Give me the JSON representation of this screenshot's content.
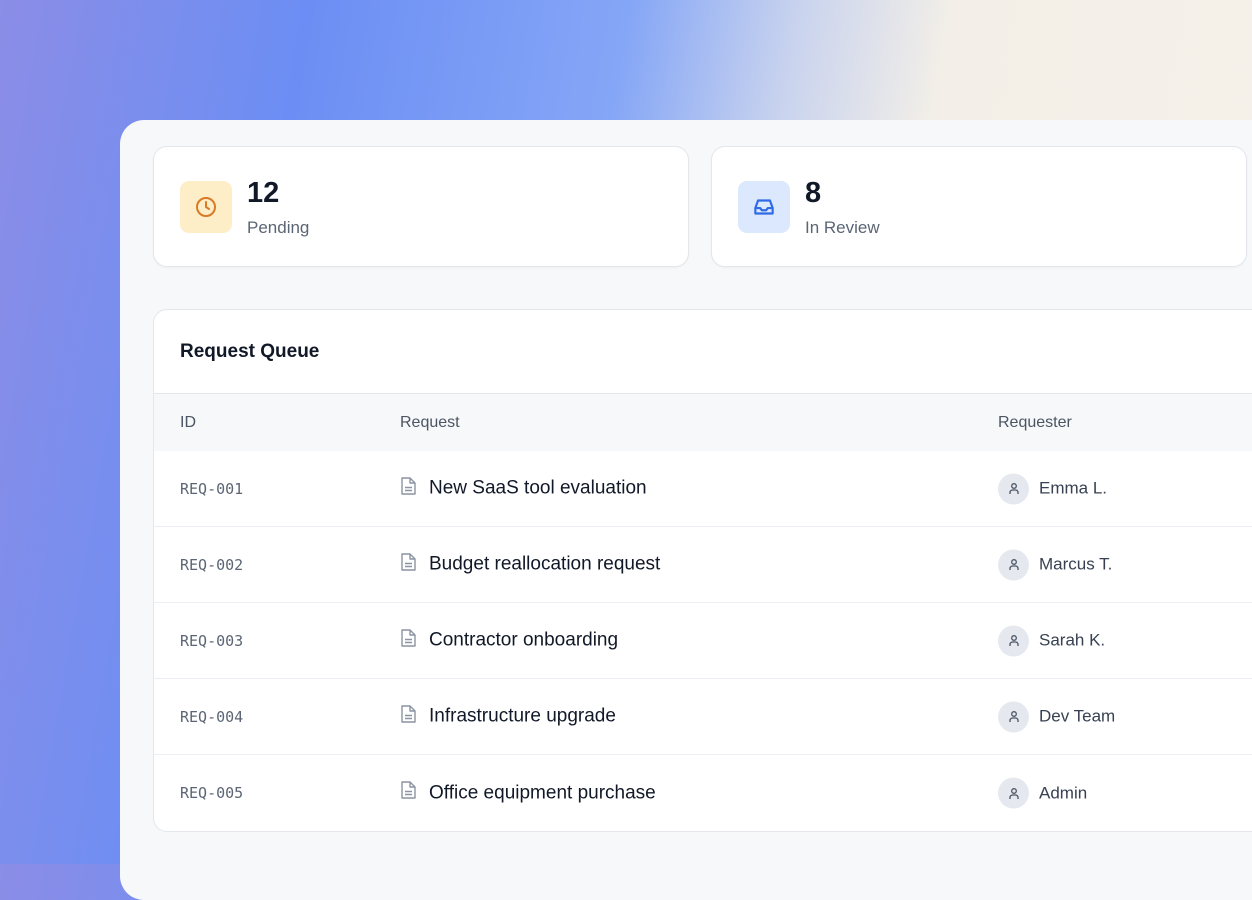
{
  "stats": [
    {
      "value": "12",
      "label": "Pending",
      "icon": "clock-icon",
      "icon_bg": "#fdeec8",
      "icon_color": "#d97a26"
    },
    {
      "value": "8",
      "label": "In Review",
      "icon": "inbox-icon",
      "icon_bg": "#dbe8fd",
      "icon_color": "#2f6be6"
    }
  ],
  "queue": {
    "title": "Request Queue",
    "columns": [
      "ID",
      "Request",
      "Requester"
    ],
    "rows": [
      {
        "id": "REQ-001",
        "request": "New SaaS tool evaluation",
        "requester": "Emma L."
      },
      {
        "id": "REQ-002",
        "request": "Budget reallocation request",
        "requester": "Marcus T."
      },
      {
        "id": "REQ-003",
        "request": "Contractor onboarding",
        "requester": "Sarah K."
      },
      {
        "id": "REQ-004",
        "request": "Infrastructure upgrade",
        "requester": "Dev Team"
      },
      {
        "id": "REQ-005",
        "request": "Office equipment purchase",
        "requester": "Admin"
      }
    ]
  }
}
